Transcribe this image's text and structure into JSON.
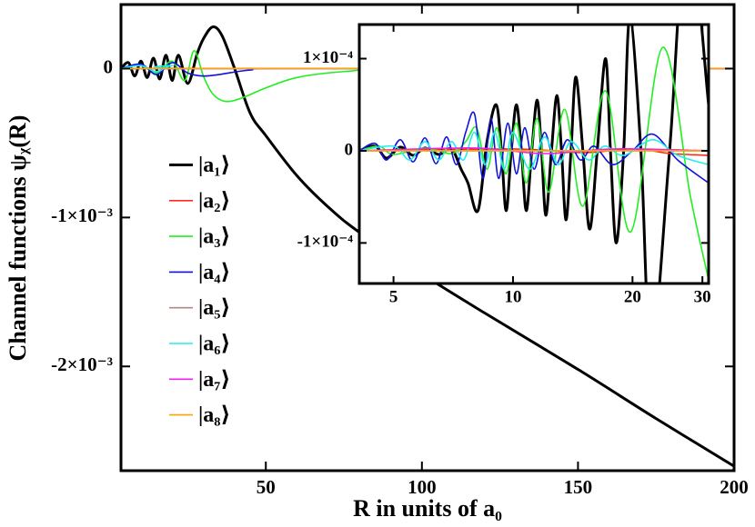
{
  "chart_data": [
    {
      "type": "line",
      "xlabel": "R in units of a₀",
      "ylabel": "Channel functions ψᵪ(R)",
      "xlim": [
        3.6,
        200
      ],
      "ylim": [
        -0.0027,
        0.00043
      ],
      "xticks": [
        50,
        100,
        150,
        200
      ],
      "yticks": [
        {
          "value": -0.002,
          "label": "-2×10⁻³"
        },
        {
          "value": -0.001,
          "label": "-1×10⁻³"
        },
        0
      ],
      "legend": "center left",
      "series": [
        {
          "name": "|a₁⟩",
          "color": "#000000",
          "x": [
            3.6,
            6,
            8,
            10,
            12,
            14,
            16,
            18,
            20,
            22,
            25,
            28,
            30,
            33,
            36,
            40,
            45,
            50,
            60,
            70,
            80,
            100,
            120,
            150,
            175,
            200
          ],
          "values": [
            0,
            4e-05,
            -5e-05,
            5e-05,
            -6e-05,
            7e-05,
            -7e-05,
            9e-05,
            -8e-05,
            9e-05,
            -0.0001,
            0.0001,
            0.0002,
            0.00028,
            0.00022,
            0,
            -0.0003,
            -0.00045,
            -0.00072,
            -0.00093,
            -0.0011,
            -0.00138,
            -0.00164,
            -0.00202,
            -0.00235,
            -0.00267
          ]
        },
        {
          "name": "|a₂⟩",
          "color": "#ff2a1a",
          "x": [
            3.6,
            200
          ],
          "values": [
            0,
            0
          ]
        },
        {
          "name": "|a₃⟩",
          "color": "#22ee22",
          "x": [
            3.6,
            10,
            15,
            20,
            24,
            27,
            30,
            33,
            37,
            42,
            50,
            60,
            75,
            100,
            200
          ],
          "values": [
            0,
            2e-05,
            -3e-05,
            5e-05,
            -8e-05,
            0.00012,
            -5e-05,
            -0.00017,
            -0.00022,
            -0.0002,
            -0.00013,
            -6e-05,
            -2e-05,
            0,
            0
          ]
        },
        {
          "name": "|a₄⟩",
          "color": "#1111dd",
          "x": [
            3.6,
            10,
            15,
            20,
            25,
            30,
            35,
            45,
            60,
            200
          ],
          "values": [
            0,
            3e-05,
            -4e-05,
            4e-05,
            -3e-05,
            -5e-05,
            -4e-05,
            -1e-05,
            0,
            0
          ]
        },
        {
          "name": "|a₅⟩",
          "color": "#b08a80",
          "x": [
            3.6,
            200
          ],
          "values": [
            0,
            0
          ]
        },
        {
          "name": "|a₆⟩",
          "color": "#22eeee",
          "x": [
            3.6,
            10,
            15,
            20,
            30,
            200
          ],
          "values": [
            0,
            2e-05,
            -2e-05,
            2e-05,
            0,
            0
          ]
        },
        {
          "name": "|a₇⟩",
          "color": "#ee22ee",
          "x": [
            3.6,
            200
          ],
          "values": [
            0,
            0
          ]
        },
        {
          "name": "|a₈⟩",
          "color": "#ffa500",
          "x": [
            3.6,
            200
          ],
          "values": [
            0,
            0
          ]
        }
      ]
    },
    {
      "type": "line",
      "xscale": "log",
      "xlim": [
        4.1,
        31.1
      ],
      "ylim": [
        -0.000144,
        0.000137
      ],
      "xticks": [
        5,
        10,
        20,
        30
      ],
      "yticks": [
        {
          "value": -0.0001,
          "label": "-1×10⁻⁴"
        },
        0,
        {
          "value": 0.0001,
          "label": "1×10⁻⁴"
        }
      ],
      "series": [
        {
          "color": "#000000",
          "x": [
            4.1,
            4.5,
            4.8,
            5.2,
            5.6,
            6.0,
            6.5,
            7.0,
            7.4,
            7.7,
            8.16,
            8.6,
            9.07,
            9.35,
            9.61,
            9.9,
            10.2,
            10.5,
            10.8,
            11.15,
            11.5,
            11.8,
            12.1,
            12.5,
            12.9,
            13.25,
            13.6,
            14.0,
            14.4,
            15.0,
            15.6,
            16.3,
            17.1,
            17.6,
            18.2,
            19.0,
            19.7,
            21.0,
            22.3,
            24.8,
            27.5,
            31.1
          ],
          "values": [
            0,
            5e-06,
            -8e-06,
            4e-06,
            -5e-06,
            3e-06,
            -4e-06,
            2e-06,
            -2e-05,
            -3.5e-05,
            -6.5e-05,
            1e-05,
            5e-05,
            0,
            -6.5e-05,
            0,
            5e-05,
            0,
            -6.5e-05,
            0,
            5.5e-05,
            0,
            -7e-05,
            0,
            6e-05,
            0,
            -7.5e-05,
            0,
            8e-05,
            0,
            -8.5e-05,
            0,
            0.0001,
            0,
            -0.0001,
            0,
            0.000145,
            0,
            -0.00022,
            0,
            0.00025,
            5e-05
          ]
        },
        {
          "color": "#ff2a1a",
          "x": [
            4.1,
            10,
            15,
            20,
            25,
            31.1
          ],
          "values": [
            0,
            2e-06,
            -2e-06,
            2e-06,
            -3e-06,
            -5e-06
          ]
        },
        {
          "color": "#22ee22",
          "x": [
            4.1,
            4.6,
            5,
            6,
            7,
            7.6,
            8.1,
            8.6,
            9.1,
            9.6,
            10.2,
            10.8,
            11.5,
            12.3,
            13.5,
            15.0,
            17.1,
            19.8,
            23.8,
            28,
            31.1
          ],
          "values": [
            0,
            5e-06,
            -4e-06,
            3e-06,
            -3e-06,
            1e-05,
            2.5e-05,
            -2e-05,
            2.5e-05,
            -2.5e-05,
            3e-05,
            -3.5e-05,
            3.5e-05,
            -4.5e-05,
            4.5e-05,
            -6e-05,
            6.5e-05,
            -8.8e-05,
            0.000112,
            -5e-05,
            -0.00014
          ]
        },
        {
          "color": "#1111dd",
          "x": [
            4.1,
            4.5,
            4.8,
            5.2,
            5.6,
            6.0,
            6.4,
            6.8,
            7.2,
            7.6,
            8.0,
            8.4,
            8.8,
            9.2,
            9.7,
            10.2,
            10.7,
            11.3,
            12,
            12.8,
            13.7,
            14.8,
            16,
            17.8,
            20,
            22.5,
            26,
            31.1
          ],
          "values": [
            0,
            8e-06,
            -1e-05,
            1.2e-05,
            -1.2e-05,
            1.4e-05,
            -1.4e-05,
            1.5e-05,
            -1.5e-05,
            2e-05,
            4e-05,
            -3e-05,
            3.5e-05,
            -3e-05,
            3e-05,
            -2.5e-05,
            2.5e-05,
            -2e-05,
            2e-05,
            -1.5e-05,
            1.2e-05,
            -1e-05,
            5e-06,
            -1.5e-05,
            0,
            1.8e-05,
            -1e-05,
            -3.5e-05
          ]
        },
        {
          "color": "#b08a80",
          "x": [
            4.1,
            31.1
          ],
          "values": [
            0,
            0
          ]
        },
        {
          "color": "#22eeee",
          "x": [
            4.1,
            5,
            5.5,
            6,
            6.5,
            7,
            7.5,
            8,
            8.5,
            9,
            9.5,
            10,
            11,
            12,
            13,
            14,
            15.5,
            17,
            19,
            22.5,
            26,
            31.1
          ],
          "values": [
            0,
            5e-06,
            -1e-05,
            1e-05,
            -1e-05,
            1e-05,
            -1e-05,
            2e-05,
            -1.5e-05,
            2e-05,
            -2e-05,
            2e-05,
            -2e-05,
            1.5e-05,
            -1.5e-05,
            1e-05,
            -1e-05,
            5e-06,
            -5e-06,
            1.2e-05,
            -5e-06,
            -1.5e-05
          ]
        },
        {
          "color": "#ee22ee",
          "x": [
            4.1,
            8,
            12,
            18,
            31.1
          ],
          "values": [
            0,
            3e-06,
            -3e-06,
            2e-06,
            0
          ]
        },
        {
          "color": "#ffa500",
          "x": [
            4.1,
            31.1
          ],
          "values": [
            0,
            0
          ]
        }
      ]
    }
  ]
}
